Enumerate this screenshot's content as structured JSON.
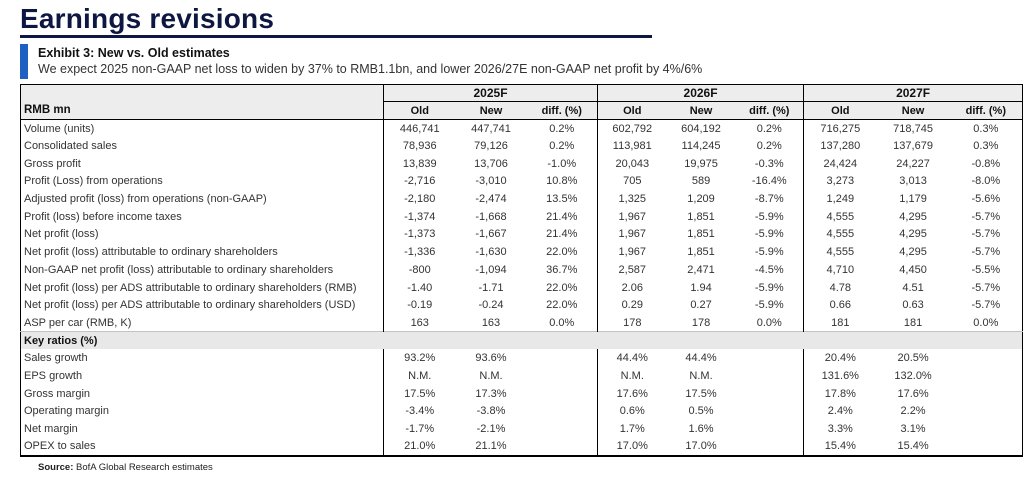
{
  "page": {
    "title": "Earnings revisions"
  },
  "exhibit": {
    "label": "Exhibit 3: New vs. Old estimates",
    "subtitle": "We expect 2025 non-GAAP net loss to widen by 37% to RMB1.1bn, and lower 2026/27E non-GAAP net profit by 4%/6%"
  },
  "colors": {
    "navy": "#0d1742",
    "accent_blue": "#1e5fc2",
    "header_bg": "#ededed",
    "section_bg": "#e8e8e8"
  },
  "table": {
    "unit_label": "RMB mn",
    "year_groups": [
      "2025F",
      "2026F",
      "2027F"
    ],
    "sub_headers": [
      "Old",
      "New",
      "diff. (%)"
    ],
    "rows": [
      {
        "type": "data",
        "label": "Volume (units)",
        "cells": [
          "446,741",
          "447,741",
          "0.2%",
          "602,792",
          "604,192",
          "0.2%",
          "716,275",
          "718,745",
          "0.3%"
        ]
      },
      {
        "type": "data",
        "label": "Consolidated sales",
        "cells": [
          "78,936",
          "79,126",
          "0.2%",
          "113,981",
          "114,245",
          "0.2%",
          "137,280",
          "137,679",
          "0.3%"
        ]
      },
      {
        "type": "data",
        "label": "Gross profit",
        "cells": [
          "13,839",
          "13,706",
          "-1.0%",
          "20,043",
          "19,975",
          "-0.3%",
          "24,424",
          "24,227",
          "-0.8%"
        ]
      },
      {
        "type": "data",
        "label": "Profit (Loss) from operations",
        "cells": [
          "-2,716",
          "-3,010",
          "10.8%",
          "705",
          "589",
          "-16.4%",
          "3,273",
          "3,013",
          "-8.0%"
        ]
      },
      {
        "type": "data",
        "label": "Adjusted profit (loss) from operations (non-GAAP)",
        "cells": [
          "-2,180",
          "-2,474",
          "13.5%",
          "1,325",
          "1,209",
          "-8.7%",
          "1,249",
          "1,179",
          "-5.6%"
        ]
      },
      {
        "type": "data",
        "label": "Profit (loss) before income taxes",
        "cells": [
          "-1,374",
          "-1,668",
          "21.4%",
          "1,967",
          "1,851",
          "-5.9%",
          "4,555",
          "4,295",
          "-5.7%"
        ]
      },
      {
        "type": "data",
        "label": "Net profit (loss)",
        "cells": [
          "-1,373",
          "-1,667",
          "21.4%",
          "1,967",
          "1,851",
          "-5.9%",
          "4,555",
          "4,295",
          "-5.7%"
        ]
      },
      {
        "type": "data",
        "label": "Net profit (loss)  attributable to ordinary shareholders",
        "cells": [
          "-1,336",
          "-1,630",
          "22.0%",
          "1,967",
          "1,851",
          "-5.9%",
          "4,555",
          "4,295",
          "-5.7%"
        ]
      },
      {
        "type": "data",
        "label": "Non-GAAP net profit (loss) attributable to ordinary shareholders",
        "cells": [
          "-800",
          "-1,094",
          "36.7%",
          "2,587",
          "2,471",
          "-4.5%",
          "4,710",
          "4,450",
          "-5.5%"
        ]
      },
      {
        "type": "data",
        "label": "Net profit (loss) per ADS attributable to ordinary shareholders (RMB)",
        "cells": [
          "-1.40",
          "-1.71",
          "22.0%",
          "2.06",
          "1.94",
          "-5.9%",
          "4.78",
          "4.51",
          "-5.7%"
        ]
      },
      {
        "type": "data",
        "label": "Net profit (loss) per ADS attributable to ordinary shareholders (USD)",
        "cells": [
          "-0.19",
          "-0.24",
          "22.0%",
          "0.29",
          "0.27",
          "-5.9%",
          "0.66",
          "0.63",
          "-5.7%"
        ]
      },
      {
        "type": "data",
        "label": "ASP per car (RMB, K)",
        "cells": [
          "163",
          "163",
          "0.0%",
          "178",
          "178",
          "0.0%",
          "181",
          "181",
          "0.0%"
        ]
      },
      {
        "type": "section",
        "label": "Key ratios (%)"
      },
      {
        "type": "data",
        "label": "Sales growth",
        "cells": [
          "93.2%",
          "93.6%",
          "",
          "44.4%",
          "44.4%",
          "",
          "20.4%",
          "20.5%",
          ""
        ]
      },
      {
        "type": "data",
        "label": "EPS growth",
        "cells": [
          "N.M.",
          "N.M.",
          "",
          "N.M.",
          "N.M.",
          "",
          "131.6%",
          "132.0%",
          ""
        ]
      },
      {
        "type": "data",
        "label": "Gross margin",
        "cells": [
          "17.5%",
          "17.3%",
          "",
          "17.6%",
          "17.5%",
          "",
          "17.8%",
          "17.6%",
          ""
        ]
      },
      {
        "type": "data",
        "label": "Operating margin",
        "cells": [
          "-3.4%",
          "-3.8%",
          "",
          "0.6%",
          "0.5%",
          "",
          "2.4%",
          "2.2%",
          ""
        ]
      },
      {
        "type": "data",
        "label": "Net margin",
        "cells": [
          "-1.7%",
          "-2.1%",
          "",
          "1.7%",
          "1.6%",
          "",
          "3.3%",
          "3.1%",
          ""
        ]
      },
      {
        "type": "data",
        "label": "OPEX to sales",
        "cells": [
          "21.0%",
          "21.1%",
          "",
          "17.0%",
          "17.0%",
          "",
          "15.4%",
          "15.4%",
          ""
        ]
      }
    ]
  },
  "source": {
    "label": "Source:",
    "text": " BofA Global Research estimates"
  }
}
